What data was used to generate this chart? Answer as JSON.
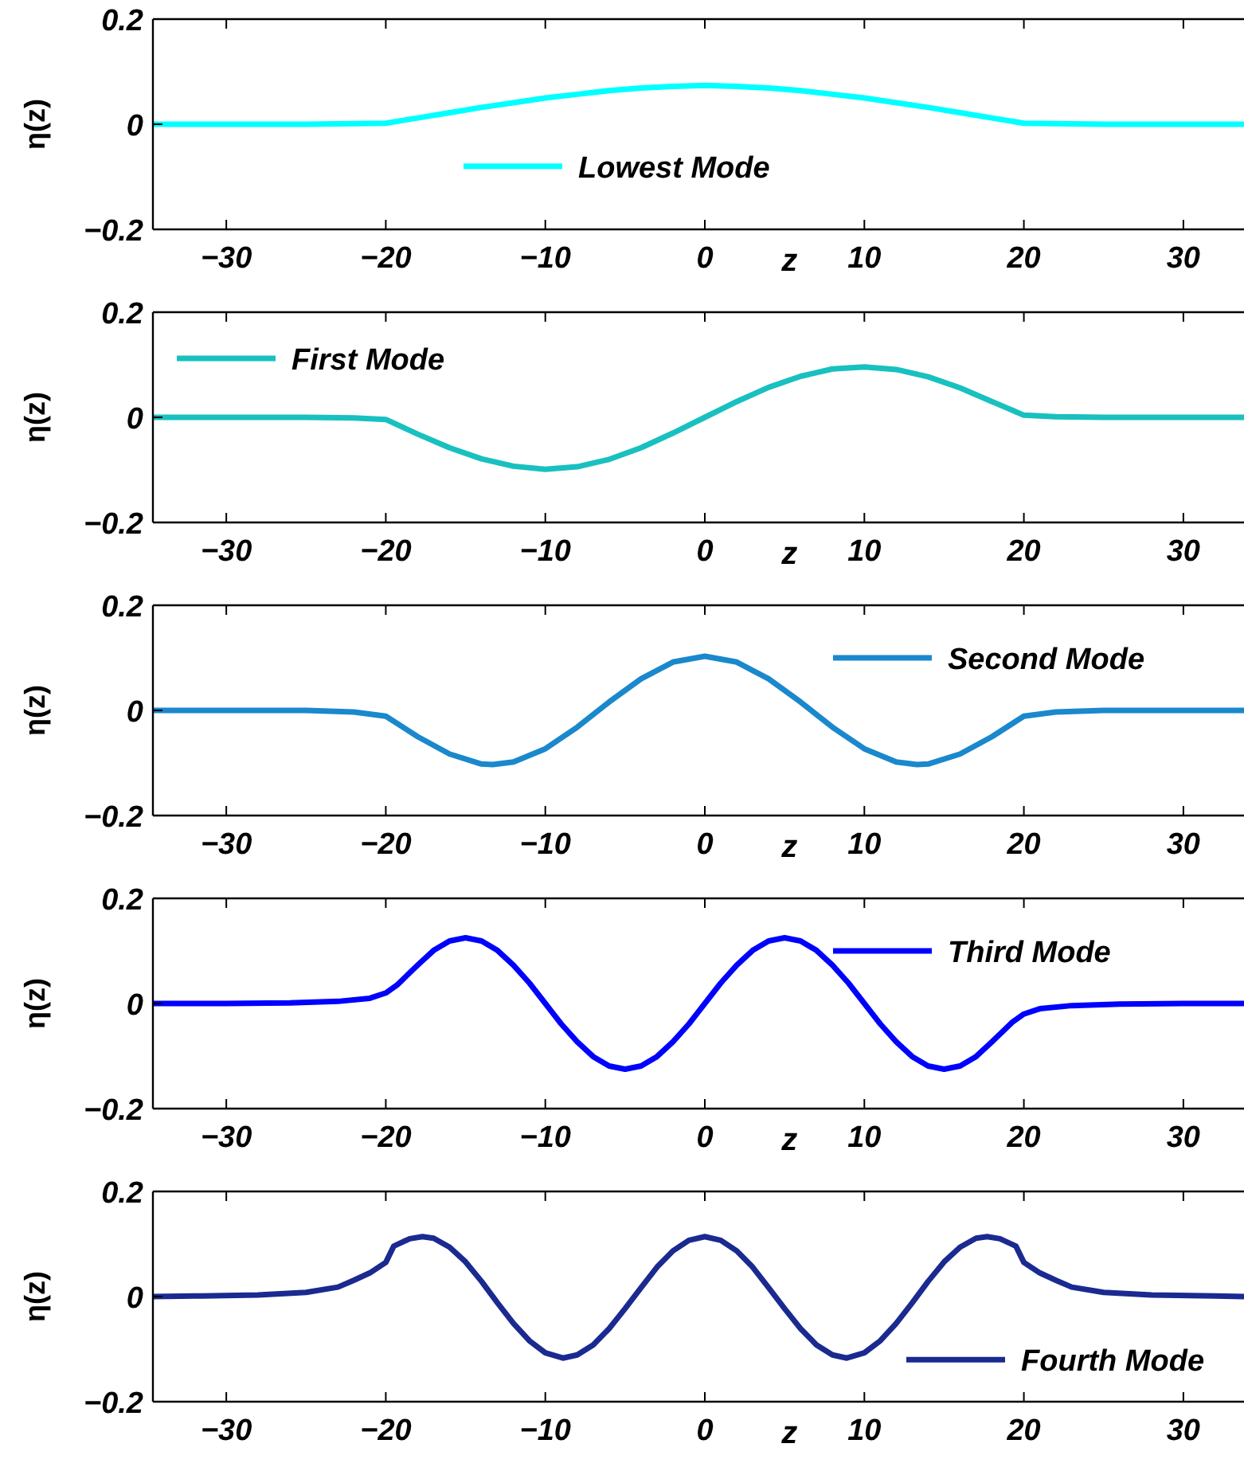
{
  "chart_data": [
    {
      "type": "line",
      "xlabel": "z",
      "ylabel": "η(z)",
      "legend": "bottom",
      "xlim": [
        -34.6,
        33.8
      ],
      "ylim": [
        -0.2,
        0.2
      ],
      "xticks": [
        -30,
        -20,
        -10,
        0,
        10,
        20,
        30
      ],
      "yticks": [
        -0.2,
        0,
        0.2
      ],
      "series": [
        {
          "name": "Lowest Mode",
          "color": "#00ffff",
          "x": [
            -34.6,
            -25,
            -20,
            -18,
            -16,
            -14,
            -12,
            -10,
            -8,
            -6,
            -4,
            -2,
            0,
            2,
            4,
            6,
            8,
            10,
            12,
            14,
            16,
            18,
            20,
            25,
            33.8
          ],
          "values": [
            0,
            0,
            0.002,
            0.012,
            0.022,
            0.032,
            0.041,
            0.05,
            0.057,
            0.064,
            0.069,
            0.072,
            0.074,
            0.072,
            0.069,
            0.064,
            0.057,
            0.05,
            0.041,
            0.032,
            0.022,
            0.012,
            0.002,
            0,
            0
          ]
        }
      ]
    },
    {
      "type": "line",
      "xlabel": "z",
      "ylabel": "η(z)",
      "legend": "top left",
      "xlim": [
        -34.6,
        33.8
      ],
      "ylim": [
        -0.2,
        0.2
      ],
      "xticks": [
        -30,
        -20,
        -10,
        0,
        10,
        20,
        30
      ],
      "yticks": [
        -0.2,
        0,
        0.2
      ],
      "series": [
        {
          "name": "First Mode",
          "color": "#19c0c0",
          "x": [
            -34.6,
            -25,
            -22,
            -20,
            -18,
            -16,
            -14,
            -12,
            -10,
            -8,
            -6,
            -4,
            -2,
            0,
            2,
            4,
            6,
            8,
            10,
            12,
            14,
            16,
            18,
            20,
            22,
            25,
            33.8
          ],
          "values": [
            0,
            0,
            -0.001,
            -0.004,
            -0.032,
            -0.058,
            -0.079,
            -0.093,
            -0.099,
            -0.094,
            -0.08,
            -0.058,
            -0.03,
            0,
            0.03,
            0.057,
            0.078,
            0.092,
            0.096,
            0.091,
            0.077,
            0.056,
            0.03,
            0.004,
            0.001,
            0,
            0
          ]
        }
      ]
    },
    {
      "type": "line",
      "xlabel": "z",
      "ylabel": "η(z)",
      "legend": "top right",
      "xlim": [
        -34.6,
        33.8
      ],
      "ylim": [
        -0.2,
        0.2
      ],
      "xticks": [
        -30,
        -20,
        -10,
        0,
        10,
        20,
        30
      ],
      "yticks": [
        -0.2,
        0,
        0.2
      ],
      "series": [
        {
          "name": "Second Mode",
          "color": "#1a88cc",
          "x": [
            -34.6,
            -25,
            -22,
            -20,
            -18,
            -16,
            -14,
            -13.3,
            -12,
            -10,
            -8,
            -6,
            -4,
            -2,
            0,
            2,
            4,
            6,
            8,
            10,
            12,
            13.3,
            14,
            16,
            18,
            20,
            22,
            25,
            33.8
          ],
          "values": [
            0,
            0,
            -0.003,
            -0.011,
            -0.05,
            -0.083,
            -0.102,
            -0.103,
            -0.098,
            -0.073,
            -0.032,
            0.016,
            0.06,
            0.092,
            0.103,
            0.092,
            0.06,
            0.016,
            -0.032,
            -0.073,
            -0.098,
            -0.103,
            -0.102,
            -0.083,
            -0.05,
            -0.011,
            -0.003,
            0,
            0
          ]
        }
      ]
    },
    {
      "type": "line",
      "xlabel": "z",
      "ylabel": "η(z)",
      "legend": "top right",
      "xlim": [
        -34.6,
        33.8
      ],
      "ylim": [
        -0.2,
        0.2
      ],
      "xticks": [
        -30,
        -20,
        -10,
        0,
        10,
        20,
        30
      ],
      "yticks": [
        -0.2,
        0,
        0.2
      ],
      "series": [
        {
          "name": "Third Mode",
          "color": "#0000ff",
          "x": [
            -34.6,
            -30,
            -26,
            -23,
            -21,
            -20,
            -19.3,
            -18,
            -17,
            -16,
            -15,
            -14,
            -13,
            -12,
            -11,
            -10,
            -9,
            -8,
            -7,
            -6,
            -5,
            -4,
            -3,
            -2,
            -1,
            0,
            1,
            2,
            3,
            4,
            5,
            6,
            7,
            8,
            9,
            10,
            11,
            12,
            13,
            14,
            15,
            16,
            17,
            18,
            19.3,
            20,
            21,
            23,
            26,
            30,
            33.8
          ],
          "values": [
            0,
            0,
            0.001,
            0.004,
            0.01,
            0.02,
            0.035,
            0.073,
            0.101,
            0.119,
            0.125,
            0.119,
            0.101,
            0.073,
            0.039,
            0,
            -0.039,
            -0.073,
            -0.101,
            -0.119,
            -0.125,
            -0.119,
            -0.101,
            -0.073,
            -0.039,
            0,
            0.039,
            0.073,
            0.101,
            0.119,
            0.125,
            0.119,
            0.101,
            0.073,
            0.039,
            0,
            -0.039,
            -0.073,
            -0.101,
            -0.119,
            -0.125,
            -0.119,
            -0.101,
            -0.073,
            -0.035,
            -0.02,
            -0.01,
            -0.004,
            -0.001,
            0,
            0
          ]
        }
      ]
    },
    {
      "type": "line",
      "xlabel": "z",
      "ylabel": "η(z)",
      "legend": "bottom right",
      "xlim": [
        -34.6,
        33.8
      ],
      "ylim": [
        -0.2,
        0.2
      ],
      "xticks": [
        -30,
        -20,
        -10,
        0,
        10,
        20,
        30
      ],
      "yticks": [
        -0.2,
        0,
        0.2
      ],
      "series": [
        {
          "name": "Fourth Mode",
          "color": "#1a2a90",
          "x": [
            -34.6,
            -32,
            -28,
            -25,
            -23,
            -22,
            -21,
            -20,
            -19.5,
            -18.5,
            -17.7,
            -17,
            -16,
            -15,
            -14,
            -13,
            -12,
            -11,
            -10,
            -8.9,
            -8,
            -7,
            -6,
            -5,
            -4,
            -3,
            -2,
            -1,
            0,
            1,
            2,
            3,
            4,
            5,
            6,
            7,
            8,
            8.9,
            10,
            11,
            12,
            13,
            14,
            15,
            16,
            17,
            17.7,
            18.5,
            19.5,
            20,
            21,
            22,
            23,
            25,
            28,
            32,
            33.8
          ],
          "values": [
            0,
            0.001,
            0.003,
            0.008,
            0.018,
            0.031,
            0.045,
            0.065,
            0.096,
            0.11,
            0.114,
            0.111,
            0.094,
            0.066,
            0.029,
            -0.012,
            -0.051,
            -0.084,
            -0.107,
            -0.117,
            -0.111,
            -0.092,
            -0.061,
            -0.023,
            0.017,
            0.056,
            0.087,
            0.107,
            0.114,
            0.107,
            0.087,
            0.056,
            0.017,
            -0.023,
            -0.061,
            -0.092,
            -0.111,
            -0.117,
            -0.107,
            -0.084,
            -0.051,
            -0.012,
            0.029,
            0.066,
            0.094,
            0.111,
            0.114,
            0.11,
            0.096,
            0.065,
            0.045,
            0.031,
            0.018,
            0.008,
            0.003,
            0.001,
            0
          ]
        }
      ]
    }
  ]
}
